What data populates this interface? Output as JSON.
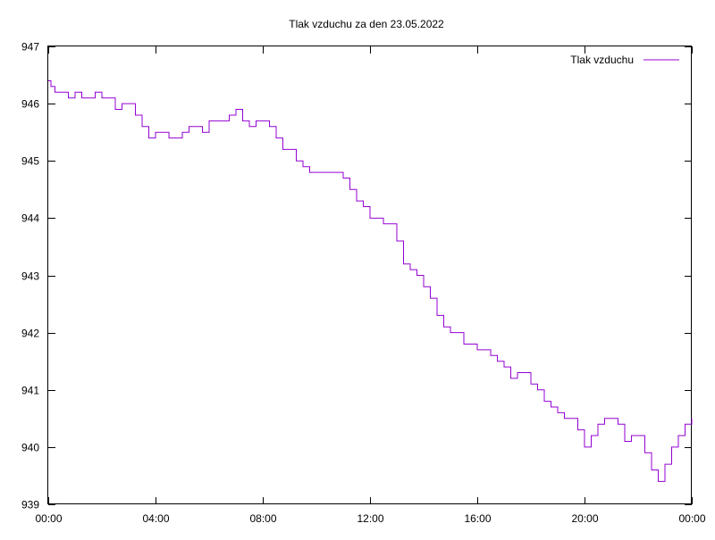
{
  "chart_data": {
    "type": "line",
    "title": "Tlak vzduchu za den 23.05.2022",
    "xlabel": "",
    "ylabel": "",
    "x_tick_labels": [
      "00:00",
      "04:00",
      "08:00",
      "12:00",
      "16:00",
      "20:00",
      "00:00"
    ],
    "x_range_hours": [
      0,
      24
    ],
    "y_ticks": [
      939,
      940,
      941,
      942,
      943,
      944,
      945,
      946,
      947
    ],
    "ylim": [
      939,
      947
    ],
    "grid": false,
    "legend_position": "top-right",
    "series": [
      {
        "name": "Tlak vzduchu",
        "color": "#9400d3",
        "x_hours": [
          0,
          0.1,
          0.25,
          0.5,
          0.75,
          1.0,
          1.25,
          1.5,
          1.75,
          2.0,
          2.25,
          2.5,
          2.75,
          3.0,
          3.25,
          3.5,
          3.75,
          4.0,
          4.25,
          4.5,
          4.75,
          5.0,
          5.25,
          5.5,
          5.75,
          6.0,
          6.25,
          6.5,
          6.75,
          7.0,
          7.25,
          7.5,
          7.75,
          8.0,
          8.25,
          8.5,
          8.75,
          9.0,
          9.25,
          9.5,
          9.75,
          10.0,
          10.25,
          10.5,
          10.75,
          11.0,
          11.25,
          11.5,
          11.75,
          12.0,
          12.25,
          12.5,
          12.75,
          13.0,
          13.25,
          13.5,
          13.75,
          14.0,
          14.25,
          14.5,
          14.75,
          15.0,
          15.25,
          15.5,
          15.75,
          16.0,
          16.25,
          16.5,
          16.75,
          17.0,
          17.25,
          17.5,
          17.75,
          18.0,
          18.25,
          18.5,
          18.75,
          19.0,
          19.25,
          19.5,
          19.75,
          20.0,
          20.25,
          20.5,
          20.75,
          21.0,
          21.25,
          21.5,
          21.75,
          22.0,
          22.25,
          22.5,
          22.75,
          23.0,
          23.25,
          23.5,
          23.75,
          24.0
        ],
        "y_values": [
          946.4,
          946.3,
          946.2,
          946.2,
          946.1,
          946.2,
          946.1,
          946.1,
          946.2,
          946.1,
          946.1,
          945.9,
          946.0,
          946.0,
          945.8,
          945.6,
          945.4,
          945.5,
          945.5,
          945.4,
          945.4,
          945.5,
          945.6,
          945.6,
          945.5,
          945.7,
          945.7,
          945.7,
          945.8,
          945.9,
          945.7,
          945.6,
          945.7,
          945.7,
          945.6,
          945.4,
          945.2,
          945.2,
          945.0,
          944.9,
          944.8,
          944.8,
          944.8,
          944.8,
          944.8,
          944.7,
          944.5,
          944.3,
          944.2,
          944.0,
          944.0,
          943.9,
          943.9,
          943.6,
          943.2,
          943.1,
          943.0,
          942.8,
          942.6,
          942.3,
          942.1,
          942.0,
          942.0,
          941.8,
          941.8,
          941.7,
          941.7,
          941.6,
          941.5,
          941.4,
          941.2,
          941.3,
          941.3,
          941.1,
          941.0,
          940.8,
          940.7,
          940.6,
          940.5,
          940.5,
          940.3,
          940.0,
          940.2,
          940.4,
          940.5,
          940.5,
          940.4,
          940.1,
          940.2,
          940.2,
          939.9,
          939.6,
          939.4,
          939.7,
          940.0,
          940.2,
          940.4,
          940.5
        ]
      }
    ]
  }
}
